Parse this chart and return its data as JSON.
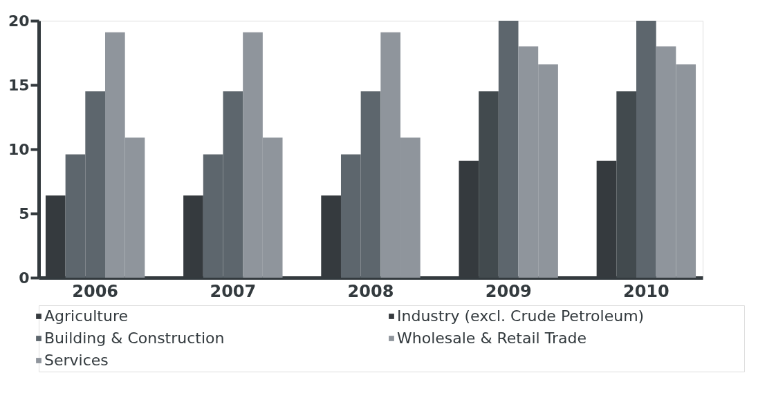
{
  "chart_data": {
    "type": "bar",
    "categories": [
      "2006",
      "2007",
      "2008",
      "2009",
      "2010"
    ],
    "series": [
      {
        "name": "Agriculture",
        "color": "#353a3e",
        "values": [
          6.4,
          6.4,
          6.4,
          9.1,
          9.1
        ]
      },
      {
        "name": "Industry (excl. Crude Petroleum)",
        "color": "#353a3e",
        "colors": [
          "#5d666d",
          "#5d666d",
          "#5d666d",
          "#424a4e",
          "#424a4e"
        ],
        "values": [
          9.6,
          9.6,
          9.6,
          14.5,
          14.5
        ]
      },
      {
        "name": "Building & Construction",
        "color": "#5d666d",
        "values": [
          14.5,
          14.5,
          14.5,
          20,
          20
        ]
      },
      {
        "name": "Wholesale & Retail Trade",
        "color": "#8f959c",
        "values": [
          19.1,
          19.1,
          19.1,
          18,
          18
        ]
      },
      {
        "name": "Services",
        "color": "#8f959c",
        "values": [
          10.9,
          10.9,
          10.9,
          16.6,
          16.6
        ]
      }
    ],
    "ylim": [
      0,
      20
    ],
    "yticks": [
      0,
      5,
      10,
      15,
      20
    ],
    "grid": false,
    "legend": "bottom"
  }
}
